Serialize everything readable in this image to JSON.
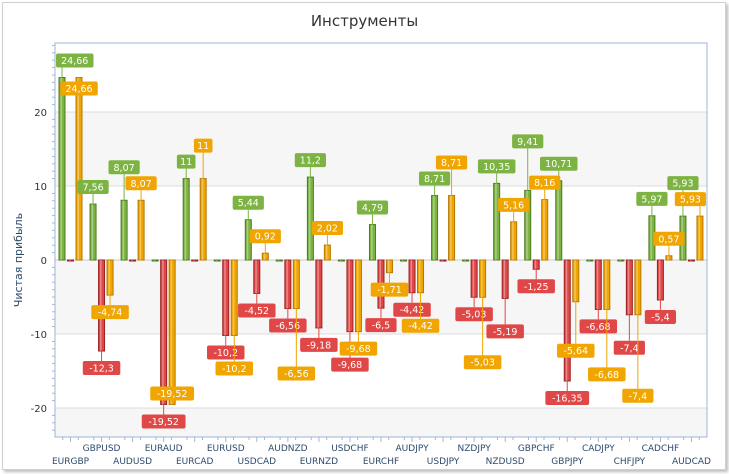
{
  "chart_data": {
    "type": "bar",
    "title": "Инструменты",
    "xlabel": "",
    "ylabel": "Чистая прибыль",
    "ylim": [
      -24,
      29.3
    ],
    "yticks": [
      -20,
      -10,
      0,
      10,
      20
    ],
    "grid": true,
    "categories": [
      "EURGBP",
      "GBPUSD",
      "AUDUSD",
      "EURAUD",
      "EURCAD",
      "EURUSD",
      "USDCAD",
      "AUDNZD",
      "EURNZD",
      "USDCHF",
      "EURCHF",
      "AUDJPY",
      "USDJPY",
      "NZDJPY",
      "NZDUSD",
      "GBPCHF",
      "GBPJPY",
      "CADJPY",
      "CHFJPY",
      "CADCHF",
      "AUDCAD"
    ],
    "series": [
      {
        "color": "#7cb342",
        "values": [
          24.66,
          7.56,
          8.07,
          0,
          11,
          0,
          5.44,
          0,
          11.2,
          0,
          4.79,
          0,
          8.71,
          0,
          10.35,
          9.41,
          10.71,
          0,
          0,
          5.97,
          5.93
        ]
      },
      {
        "color": "#e04848",
        "values": [
          0,
          -12.3,
          0,
          -19.52,
          0,
          -10.2,
          -4.52,
          -6.56,
          -9.18,
          -9.68,
          -6.5,
          -4.42,
          0,
          -5.03,
          -5.19,
          -1.25,
          -16.35,
          -6.68,
          -7.4,
          -5.4,
          0
        ]
      },
      {
        "color": "#f0a500",
        "values": [
          24.66,
          -4.74,
          8.07,
          -19.52,
          11,
          -10.2,
          0.92,
          -6.56,
          2.02,
          -9.68,
          -1.71,
          -4.42,
          8.71,
          -5.03,
          5.16,
          8.16,
          -5.64,
          -6.68,
          -7.4,
          0.57,
          5.93
        ]
      }
    ]
  }
}
